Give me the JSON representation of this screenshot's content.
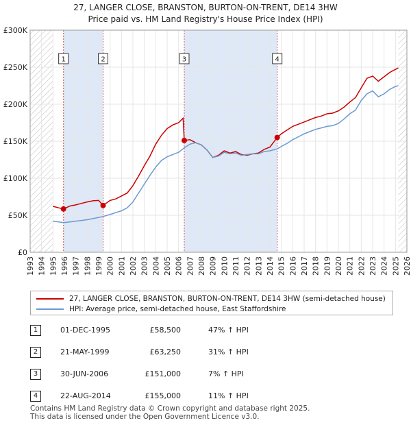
{
  "title_line1": "27, LANGER CLOSE, BRANSTON, BURTON-ON-TRENT, DE14 3HW",
  "title_line2": "Price paid vs. HM Land Registry's House Price Index (HPI)",
  "colors": {
    "property": "#cc0000",
    "hpi": "#6a9ad0",
    "shade": "#dfe8f6",
    "hatch": "#bbbbbb"
  },
  "chart_data": {
    "type": "line",
    "title": "27, LANGER CLOSE, BRANSTON, BURTON-ON-TRENT, DE14 3HW — Price paid vs. HM Land Registry's House Price Index (HPI)",
    "xlabel": "",
    "ylabel": "",
    "xlim": [
      1993,
      2026
    ],
    "ylim": [
      0,
      300000
    ],
    "y_ticks": [
      0,
      50000,
      100000,
      150000,
      200000,
      250000,
      300000
    ],
    "y_tick_labels": [
      "£0",
      "£50K",
      "£100K",
      "£150K",
      "£200K",
      "£250K",
      "£300K"
    ],
    "x_ticks": [
      1993,
      1994,
      1995,
      1996,
      1997,
      1998,
      1999,
      2000,
      2001,
      2002,
      2003,
      2004,
      2005,
      2006,
      2007,
      2008,
      2009,
      2010,
      2011,
      2012,
      2013,
      2014,
      2015,
      2016,
      2017,
      2018,
      2019,
      2020,
      2021,
      2022,
      2023,
      2024,
      2025,
      2026
    ],
    "x_tick_labels": [
      "1993",
      "1994",
      "1995",
      "1996",
      "1997",
      "1998",
      "1999",
      "2000",
      "2001",
      "2002",
      "2003",
      "2004",
      "2005",
      "2006",
      "2007",
      "2008",
      "2009",
      "2010",
      "2011",
      "2012",
      "2013",
      "2014",
      "2015",
      "2016",
      "2017",
      "2018",
      "2019",
      "2020",
      "2021",
      "2022",
      "2023",
      "2024",
      "2025",
      "2026"
    ],
    "shaded_spans": [
      [
        1995.92,
        1999.39
      ],
      [
        2006.5,
        2014.64
      ]
    ],
    "data_start": 1995.0,
    "data_end": 2025.25,
    "series": [
      {
        "name": "27, LANGER CLOSE, BRANSTON, BURTON-ON-TRENT, DE14 3HW (semi-detached house)",
        "color": "#cc0000",
        "x": [
          1995.0,
          1995.5,
          1995.92,
          1996.5,
          1997.0,
          1997.5,
          1998.0,
          1998.5,
          1999.0,
          1999.39,
          2000.0,
          2000.5,
          2001.0,
          2001.5,
          2002.0,
          2002.5,
          2003.0,
          2003.5,
          2004.0,
          2004.5,
          2005.0,
          2005.5,
          2006.0,
          2006.4,
          2006.5,
          2007.0,
          2007.5,
          2008.0,
          2008.5,
          2009.0,
          2009.5,
          2010.0,
          2010.5,
          2011.0,
          2011.5,
          2012.0,
          2012.5,
          2013.0,
          2013.5,
          2014.0,
          2014.64,
          2015.0,
          2015.5,
          2016.0,
          2016.5,
          2017.0,
          2017.5,
          2018.0,
          2018.5,
          2019.0,
          2019.5,
          2020.0,
          2020.5,
          2021.0,
          2021.5,
          2022.0,
          2022.5,
          2023.0,
          2023.5,
          2024.0,
          2024.5,
          2025.0,
          2025.25
        ],
        "y": [
          62000,
          60000,
          58500,
          62500,
          64000,
          66000,
          68000,
          69500,
          70000,
          63250,
          70000,
          72000,
          76000,
          80000,
          90000,
          103000,
          117000,
          130000,
          146000,
          158000,
          167000,
          172000,
          175000,
          181000,
          151000,
          152000,
          148000,
          145000,
          138000,
          128000,
          131000,
          137000,
          134000,
          136000,
          132000,
          131000,
          133000,
          134000,
          139000,
          142000,
          155000,
          160000,
          165000,
          170000,
          173000,
          176000,
          179000,
          182000,
          184000,
          187000,
          188000,
          191000,
          196000,
          203000,
          209000,
          222000,
          235000,
          238000,
          231000,
          237000,
          243000,
          247000,
          249000
        ]
      },
      {
        "name": "HPI: Average price, semi-detached house, East Staffordshire",
        "color": "#6a9ad0",
        "x": [
          1995.0,
          1995.5,
          1995.92,
          1996.5,
          1997.0,
          1997.5,
          1998.0,
          1998.5,
          1999.0,
          1999.39,
          2000.0,
          2000.5,
          2001.0,
          2001.5,
          2002.0,
          2002.5,
          2003.0,
          2003.5,
          2004.0,
          2004.5,
          2005.0,
          2005.5,
          2006.0,
          2006.5,
          2007.0,
          2007.5,
          2008.0,
          2008.5,
          2009.0,
          2009.5,
          2010.0,
          2010.5,
          2011.0,
          2011.5,
          2012.0,
          2012.5,
          2013.0,
          2013.5,
          2014.0,
          2014.64,
          2015.0,
          2015.5,
          2016.0,
          2016.5,
          2017.0,
          2017.5,
          2018.0,
          2018.5,
          2019.0,
          2019.5,
          2020.0,
          2020.5,
          2021.0,
          2021.5,
          2022.0,
          2022.5,
          2023.0,
          2023.5,
          2024.0,
          2024.5,
          2025.0,
          2025.25
        ],
        "y": [
          42000,
          41000,
          40000,
          41000,
          42000,
          43000,
          44000,
          45500,
          47000,
          48300,
          51000,
          53500,
          56000,
          60000,
          68000,
          80000,
          92000,
          104000,
          115000,
          124000,
          129000,
          132000,
          135000,
          141000,
          146000,
          148000,
          145000,
          138000,
          128000,
          130000,
          135000,
          133000,
          134000,
          131000,
          132000,
          133000,
          133000,
          136000,
          137000,
          139600,
          143000,
          147000,
          152000,
          156000,
          160000,
          163000,
          166000,
          168000,
          170000,
          171000,
          174000,
          180000,
          187000,
          192000,
          205000,
          214000,
          218000,
          210000,
          214000,
          220000,
          224000,
          225000
        ]
      }
    ],
    "sale_points": [
      {
        "label": "1",
        "x": 1995.92,
        "y": 58500
      },
      {
        "label": "2",
        "x": 1999.39,
        "y": 63250
      },
      {
        "label": "3",
        "x": 2006.5,
        "y": 151000
      },
      {
        "label": "4",
        "x": 2014.64,
        "y": 155000
      }
    ]
  },
  "legend": {
    "property_label": "27, LANGER CLOSE, BRANSTON, BURTON-ON-TRENT, DE14 3HW (semi-detached house)",
    "hpi_label": "HPI: Average price, semi-detached house, East Staffordshire"
  },
  "sales": [
    {
      "num": "1",
      "date": "01-DEC-1995",
      "price": "£58,500",
      "hpi": "47% ↑ HPI"
    },
    {
      "num": "2",
      "date": "21-MAY-1999",
      "price": "£63,250",
      "hpi": "31% ↑ HPI"
    },
    {
      "num": "3",
      "date": "30-JUN-2006",
      "price": "£151,000",
      "hpi": "7% ↑ HPI"
    },
    {
      "num": "4",
      "date": "22-AUG-2014",
      "price": "£155,000",
      "hpi": "11% ↑ HPI"
    }
  ],
  "footer_line1": "Contains HM Land Registry data © Crown copyright and database right 2025.",
  "footer_line2": "This data is licensed under the Open Government Licence v3.0."
}
